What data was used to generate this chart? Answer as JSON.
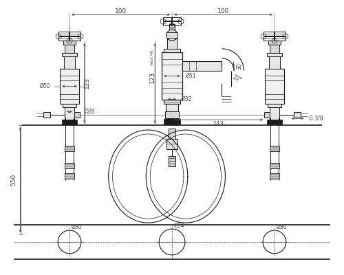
{
  "bg_color": "#ffffff",
  "line_color": "#1a1a1a",
  "dim_color": "#444444",
  "fig_width": 5.0,
  "fig_height": 4.0,
  "dpi": 100,
  "annotations": {
    "top_dim_100_left": "100",
    "top_dim_100_right": "100",
    "dim_123_left": "123",
    "dim_123_center": "123",
    "dim_max40": "max.40",
    "dim_550": "550",
    "dim_d50": "Ø50",
    "dim_d28": "Ò28",
    "dim_d51": "Ø51",
    "dim_d32": "Ø32",
    "dim_30": "30",
    "dim_23deg": "23°",
    "dim_143": "143",
    "dim_g38": "G 3/8",
    "dim_d30_l": "Ø30",
    "dim_d34": "Ø34",
    "dim_d30_r": "Ø30"
  }
}
